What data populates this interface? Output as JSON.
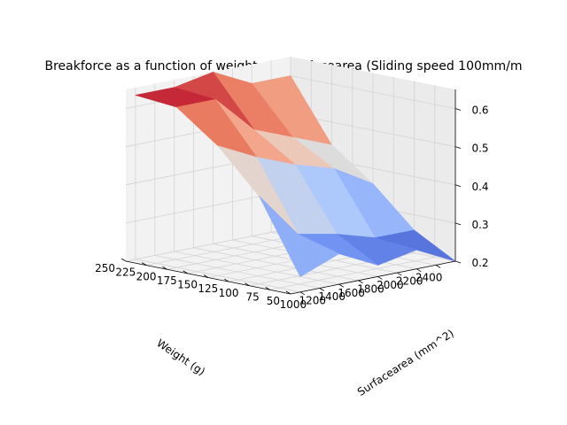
{
  "chart_data": {
    "type": "surface3d",
    "title": "Breakforce as a function of weight and surfacearea (Sliding speed 100mm/m",
    "xlabel": "Weight (g)",
    "ylabel": "Surfacearea (mm^2)",
    "zlabel": "",
    "colormap": "coolwarm",
    "colormap_stops": [
      "#3b4cc0",
      "#6f92f3",
      "#aac7fd",
      "#dddcdc",
      "#f7b89c",
      "#e7745b",
      "#b40426"
    ],
    "weights": [
      50,
      100,
      150,
      200,
      250
    ],
    "surfaceareas": [
      1000,
      1400,
      1800,
      2200,
      2600
    ],
    "breakforce": [
      [
        0.24,
        0.28,
        0.23,
        0.25,
        0.2
      ],
      [
        0.43,
        0.31,
        0.29,
        0.26,
        0.26
      ],
      [
        0.54,
        0.49,
        0.45,
        0.42,
        0.36
      ],
      [
        0.62,
        0.62,
        0.52,
        0.48,
        0.44
      ],
      [
        0.63,
        0.63,
        0.65,
        0.6,
        0.6
      ]
    ],
    "xlim": [
      50,
      250
    ],
    "ylim": [
      900,
      2600
    ],
    "zlim": [
      0.2,
      0.65
    ],
    "x_ticks": [
      250,
      225,
      200,
      175,
      150,
      125,
      100,
      75,
      50
    ],
    "y_ticks": [
      1000,
      1200,
      1400,
      1600,
      1800,
      2000,
      2200,
      2400
    ],
    "z_ticks": [
      0.2,
      0.3,
      0.4,
      0.5,
      0.6
    ],
    "x_tick_labels": [
      "250",
      "225",
      "200",
      "175",
      "150",
      "125",
      "100",
      "75",
      "50"
    ],
    "y_tick_labels": [
      "1000",
      "1200",
      "1400",
      "1600",
      "1800",
      "2000",
      "2200",
      "2400"
    ],
    "z_tick_labels": [
      "0.2",
      "0.3",
      "0.4",
      "0.5",
      "0.6"
    ],
    "view": {
      "elev": 30,
      "azim": -135
    },
    "grid": true
  }
}
